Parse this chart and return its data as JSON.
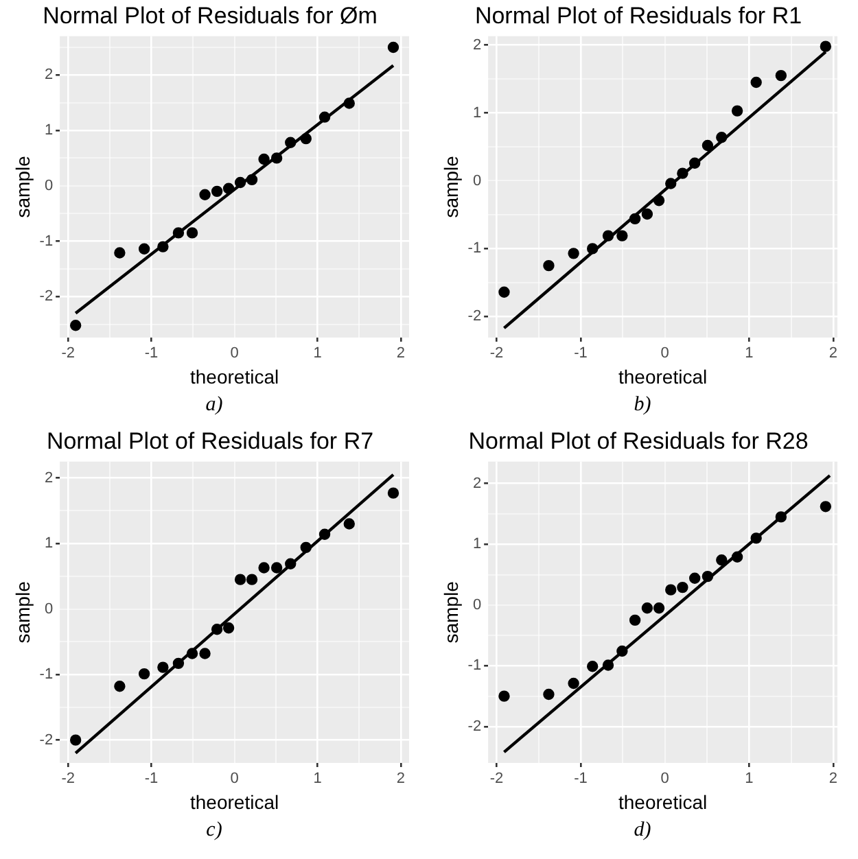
{
  "chart_data": [
    {
      "type": "scatter",
      "title": "Normal Plot of Residuals for Øm",
      "xlabel": "theoretical",
      "ylabel": "sample",
      "annotations": [
        "a)"
      ],
      "grid": true,
      "x": [
        -1.91,
        -1.38,
        -1.085,
        -0.86,
        -0.674,
        -0.508,
        -0.355,
        -0.21,
        -0.07,
        0.07,
        0.21,
        0.355,
        0.508,
        0.674,
        0.86,
        1.085,
        1.38,
        1.91
      ],
      "series": [
        {
          "color": "#000000",
          "marker": "circle",
          "values": [
            -2.52,
            -1.21,
            -1.14,
            -1.1,
            -0.85,
            -0.85,
            -0.16,
            -0.1,
            -0.05,
            0.06,
            0.11,
            0.48,
            0.5,
            0.78,
            0.85,
            1.24,
            1.49,
            2.5
          ]
        },
        {
          "type": "line",
          "color": "#000000",
          "marker": "none",
          "x": [
            -1.91,
            1.91
          ],
          "values": [
            -2.3,
            2.17
          ]
        }
      ],
      "xlim": [
        -2.1,
        2.1
      ],
      "ylim": [
        -2.74,
        2.7
      ],
      "xticks": [
        -2,
        {
          "value": -1.5,
          "label": null
        },
        -1,
        {
          "value": -0.5,
          "label": null
        },
        0,
        {
          "value": 0.5,
          "label": null
        },
        1,
        {
          "value": 1.5,
          "label": null
        },
        2
      ],
      "yticks": [
        {
          "value": -2.5,
          "label": null
        },
        -2,
        {
          "value": -1.5,
          "label": null
        },
        -1,
        {
          "value": -0.5,
          "label": null
        },
        0,
        {
          "value": 0.5,
          "label": null
        },
        1,
        {
          "value": 1.5,
          "label": null
        },
        2,
        {
          "value": 2.5,
          "label": null
        }
      ]
    },
    {
      "type": "scatter",
      "title": "Normal Plot of Residuals for R1",
      "xlabel": "theoretical",
      "ylabel": "sample",
      "annotations": [
        "b)"
      ],
      "grid": true,
      "x": [
        -1.91,
        -1.38,
        -1.085,
        -0.86,
        -0.674,
        -0.508,
        -0.355,
        -0.21,
        -0.07,
        0.07,
        0.21,
        0.355,
        0.508,
        0.674,
        0.86,
        1.085,
        1.38,
        1.91
      ],
      "series": [
        {
          "color": "#000000",
          "marker": "circle",
          "values": [
            -1.64,
            -1.25,
            -1.07,
            -1.0,
            -0.81,
            -0.81,
            -0.56,
            -0.49,
            -0.29,
            -0.04,
            0.11,
            0.26,
            0.52,
            0.64,
            1.03,
            1.45,
            1.55,
            1.98
          ]
        },
        {
          "type": "line",
          "color": "#000000",
          "marker": "none",
          "x": [
            -1.91,
            1.91
          ],
          "values": [
            -2.17,
            1.9
          ]
        }
      ],
      "xlim": [
        -2.1,
        2.05
      ],
      "ylim": [
        -2.31,
        2.13
      ],
      "xticks": [
        -2,
        {
          "value": -1.5,
          "label": null
        },
        -1,
        {
          "value": -0.5,
          "label": null
        },
        0,
        {
          "value": 0.5,
          "label": null
        },
        1,
        {
          "value": 1.5,
          "label": null
        },
        2
      ],
      "yticks": [
        -2,
        {
          "value": -1.5,
          "label": null
        },
        -1,
        {
          "value": -0.5,
          "label": null
        },
        0,
        {
          "value": 0.5,
          "label": null
        },
        1,
        {
          "value": 1.5,
          "label": null
        },
        2
      ]
    },
    {
      "type": "scatter",
      "title": "Normal Plot of Residuals for R7",
      "xlabel": "theoretical",
      "ylabel": "sample",
      "annotations": [
        "c)"
      ],
      "grid": true,
      "x": [
        -1.91,
        -1.38,
        -1.085,
        -0.86,
        -0.674,
        -0.508,
        -0.355,
        -0.21,
        -0.07,
        0.07,
        0.21,
        0.355,
        0.508,
        0.674,
        0.86,
        1.085,
        1.38,
        1.91
      ],
      "series": [
        {
          "color": "#000000",
          "marker": "circle",
          "values": [
            -2.0,
            -1.18,
            -0.99,
            -0.89,
            -0.83,
            -0.68,
            -0.68,
            -0.31,
            -0.29,
            0.45,
            0.45,
            0.63,
            0.63,
            0.69,
            0.94,
            1.14,
            1.3,
            1.77
          ]
        },
        {
          "type": "line",
          "color": "#000000",
          "marker": "none",
          "x": [
            -1.91,
            1.91
          ],
          "values": [
            -2.2,
            2.05
          ]
        }
      ],
      "xlim": [
        -2.1,
        2.1
      ],
      "ylim": [
        -2.35,
        2.25
      ],
      "xticks": [
        -2,
        {
          "value": -1.5,
          "label": null
        },
        -1,
        {
          "value": -0.5,
          "label": null
        },
        0,
        {
          "value": 0.5,
          "label": null
        },
        1,
        {
          "value": 1.5,
          "label": null
        },
        2
      ],
      "yticks": [
        -2,
        {
          "value": -1.5,
          "label": null
        },
        -1,
        {
          "value": -0.5,
          "label": null
        },
        0,
        {
          "value": 0.5,
          "label": null
        },
        1,
        {
          "value": 1.5,
          "label": null
        },
        2
      ]
    },
    {
      "type": "scatter",
      "title": "Normal Plot of Residuals for R28",
      "xlabel": "theoretical",
      "ylabel": "sample",
      "annotations": [
        "d)"
      ],
      "grid": true,
      "x": [
        -1.91,
        -1.38,
        -1.085,
        -0.86,
        -0.674,
        -0.508,
        -0.355,
        -0.21,
        -0.07,
        0.07,
        0.21,
        0.355,
        0.508,
        0.674,
        0.86,
        1.085,
        1.38,
        1.91
      ],
      "series": [
        {
          "color": "#000000",
          "marker": "circle",
          "values": [
            -1.5,
            -1.47,
            -1.29,
            -1.01,
            -0.99,
            -0.76,
            -0.25,
            -0.05,
            -0.05,
            0.25,
            0.29,
            0.44,
            0.47,
            0.74,
            0.79,
            1.1,
            1.45,
            1.62
          ]
        },
        {
          "type": "line",
          "color": "#000000",
          "marker": "none",
          "x": [
            -1.91,
            1.96
          ],
          "values": [
            -2.42,
            2.13
          ]
        }
      ],
      "xlim": [
        -2.1,
        2.05
      ],
      "ylim": [
        -2.6,
        2.36
      ],
      "xticks": [
        -2,
        {
          "value": -1.5,
          "label": null
        },
        -1,
        {
          "value": -0.5,
          "label": null
        },
        0,
        {
          "value": 0.5,
          "label": null
        },
        1,
        {
          "value": 1.5,
          "label": null
        },
        2
      ],
      "yticks": [
        -2,
        {
          "value": -1.5,
          "label": null
        },
        -1,
        {
          "value": -0.5,
          "label": null
        },
        0,
        {
          "value": 0.5,
          "label": null
        },
        1,
        {
          "value": 1.5,
          "label": null
        },
        2
      ]
    }
  ]
}
